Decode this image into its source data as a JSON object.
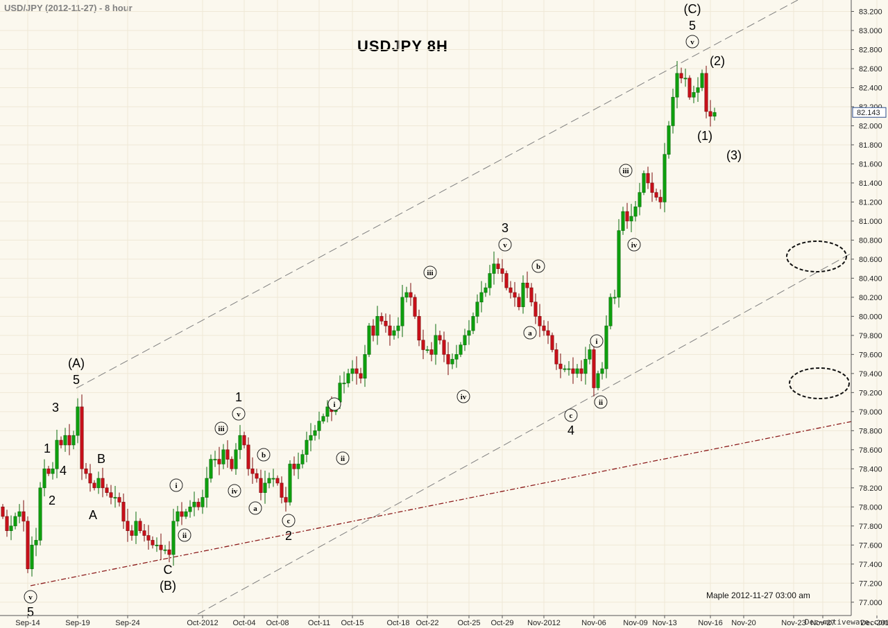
{
  "header": {
    "title": "USD/JPY (2012-11-27) - 8 hour"
  },
  "chart_title": "USDJPY  8H",
  "footnote": "Maple  2012-11-27  03:00 am",
  "watermark": "Dec−motivewave.com",
  "chart_data": {
    "type": "candlestick",
    "ylim": [
      76.86,
      83.32
    ],
    "y_ticks": [
      77.0,
      77.2,
      77.4,
      77.6,
      77.8,
      78.0,
      78.2,
      78.4,
      78.6,
      78.8,
      79.0,
      79.2,
      79.4,
      79.6,
      79.8,
      80.0,
      80.2,
      80.4,
      80.6,
      80.8,
      81.0,
      81.2,
      81.4,
      81.6,
      81.8,
      82.0,
      82.2,
      82.4,
      82.6,
      82.8,
      83.0,
      83.2
    ],
    "x_ticks": [
      {
        "label": "Sep-14",
        "bar": 6
      },
      {
        "label": "Sep-19",
        "bar": 18
      },
      {
        "label": "Sep-24",
        "bar": 30
      },
      {
        "label": "Oct-2012",
        "bar": 48
      },
      {
        "label": "Oct-04",
        "bar": 58
      },
      {
        "label": "Oct-08",
        "bar": 66
      },
      {
        "label": "Oct-11",
        "bar": 76
      },
      {
        "label": "Oct-15",
        "bar": 84
      },
      {
        "label": "Oct-18",
        "bar": 95
      },
      {
        "label": "Oct-22",
        "bar": 102
      },
      {
        "label": "Oct-25",
        "bar": 112
      },
      {
        "label": "Oct-29",
        "bar": 120
      },
      {
        "label": "Nov-2012",
        "bar": 130
      },
      {
        "label": "Nov-06",
        "bar": 142
      },
      {
        "label": "Nov-09",
        "bar": 152
      },
      {
        "label": "Nov-13",
        "bar": 159
      },
      {
        "label": "Nov-16",
        "bar": 170
      },
      {
        "label": "Nov-20",
        "bar": 178
      },
      {
        "label": "Nov-23",
        "bar": 190
      },
      {
        "label": "Nov-27",
        "bar": 197
      },
      {
        "label": "Dec-2012",
        "bar": 210
      },
      {
        "label": "Dec-",
        "bar": 217
      }
    ],
    "last_price": "82.143",
    "closes": [
      77.9,
      77.75,
      77.8,
      77.9,
      77.95,
      77.85,
      77.35,
      77.6,
      77.65,
      78.2,
      78.4,
      78.35,
      78.4,
      78.7,
      78.65,
      78.75,
      78.65,
      78.75,
      79.05,
      78.4,
      78.35,
      78.25,
      78.2,
      78.3,
      78.2,
      78.15,
      78.1,
      78.1,
      78.05,
      77.85,
      77.75,
      77.7,
      77.85,
      77.75,
      77.7,
      77.65,
      77.6,
      77.6,
      77.55,
      77.55,
      77.5,
      77.85,
      77.95,
      77.9,
      77.95,
      78.0,
      78.05,
      78.0,
      78.1,
      78.3,
      78.5,
      78.5,
      78.45,
      78.6,
      78.5,
      78.4,
      78.6,
      78.75,
      78.65,
      78.4,
      78.35,
      78.3,
      78.15,
      78.25,
      78.3,
      78.3,
      78.25,
      78.1,
      78.05,
      78.45,
      78.4,
      78.45,
      78.55,
      78.7,
      78.75,
      78.8,
      78.9,
      78.95,
      79.05,
      79.0,
      79.1,
      79.3,
      79.3,
      79.4,
      79.45,
      79.4,
      79.35,
      79.6,
      79.9,
      79.8,
      80.0,
      79.95,
      79.9,
      79.8,
      79.85,
      79.9,
      80.2,
      80.25,
      80.2,
      80.0,
      79.75,
      79.65,
      79.65,
      79.6,
      79.8,
      79.75,
      79.6,
      79.5,
      79.55,
      79.6,
      79.7,
      79.8,
      79.85,
      80.0,
      80.15,
      80.25,
      80.3,
      80.45,
      80.55,
      80.5,
      80.45,
      80.3,
      80.25,
      80.2,
      80.1,
      80.35,
      80.3,
      80.15,
      80.0,
      79.9,
      79.85,
      79.8,
      79.65,
      79.5,
      79.45,
      79.45,
      79.45,
      79.4,
      79.45,
      79.4,
      79.55,
      79.65,
      79.25,
      79.4,
      79.45,
      79.9,
      80.2,
      80.2,
      80.9,
      81.1,
      81.0,
      81.05,
      81.15,
      81.3,
      81.5,
      81.4,
      81.3,
      81.25,
      81.2,
      81.7,
      82.0,
      82.3,
      82.55,
      82.5,
      82.5,
      82.3,
      82.35,
      82.4,
      82.55,
      82.15,
      82.1,
      82.14
    ],
    "wave_labels": [
      {
        "text": "(A)",
        "x": 110,
        "y": 524
      },
      {
        "text": "5",
        "x": 110,
        "y": 548
      },
      {
        "text": "3",
        "x": 80,
        "y": 588
      },
      {
        "text": "1",
        "x": 68,
        "y": 647
      },
      {
        "text": "4",
        "x": 91,
        "y": 679
      },
      {
        "text": "2",
        "x": 75,
        "y": 722
      },
      {
        "text": "B",
        "x": 146,
        "y": 662
      },
      {
        "text": "A",
        "x": 134,
        "y": 743
      },
      {
        "text": "C",
        "x": 242,
        "y": 822
      },
      {
        "text": "(B)",
        "x": 242,
        "y": 845
      },
      {
        "text": "5",
        "x": 44,
        "y": 883
      },
      {
        "text": "1",
        "x": 344,
        "y": 573
      },
      {
        "text": "2",
        "x": 416,
        "y": 773
      },
      {
        "text": "3",
        "x": 728,
        "y": 329
      },
      {
        "text": "4",
        "x": 823,
        "y": 621
      },
      {
        "text": "(C)",
        "x": 998,
        "y": 13
      },
      {
        "text": "5",
        "x": 998,
        "y": 37
      },
      {
        "text": "(2)",
        "x": 1034,
        "y": 88
      },
      {
        "text": "(1)",
        "x": 1016,
        "y": 196
      },
      {
        "text": "(3)",
        "x": 1058,
        "y": 224
      }
    ],
    "circle_labels": [
      {
        "text": "v",
        "x": 44,
        "y": 861
      },
      {
        "text": "i",
        "x": 254,
        "y": 700
      },
      {
        "text": "ii",
        "x": 266,
        "y": 772
      },
      {
        "text": "iii",
        "x": 319,
        "y": 618
      },
      {
        "text": "iv",
        "x": 338,
        "y": 708
      },
      {
        "text": "v",
        "x": 344,
        "y": 597
      },
      {
        "text": "a",
        "x": 368,
        "y": 733
      },
      {
        "text": "b",
        "x": 380,
        "y": 656
      },
      {
        "text": "c",
        "x": 416,
        "y": 751
      },
      {
        "text": "i",
        "x": 482,
        "y": 583
      },
      {
        "text": "ii",
        "x": 494,
        "y": 661
      },
      {
        "text": "iii",
        "x": 620,
        "y": 393
      },
      {
        "text": "iv",
        "x": 668,
        "y": 572
      },
      {
        "text": "v",
        "x": 728,
        "y": 353
      },
      {
        "text": "b",
        "x": 776,
        "y": 384
      },
      {
        "text": "a",
        "x": 764,
        "y": 480
      },
      {
        "text": "c",
        "x": 823,
        "y": 599
      },
      {
        "text": "i",
        "x": 860,
        "y": 492
      },
      {
        "text": "ii",
        "x": 866,
        "y": 580
      },
      {
        "text": "iii",
        "x": 902,
        "y": 246
      },
      {
        "text": "iv",
        "x": 914,
        "y": 353
      },
      {
        "text": "v",
        "x": 998,
        "y": 60
      }
    ]
  }
}
